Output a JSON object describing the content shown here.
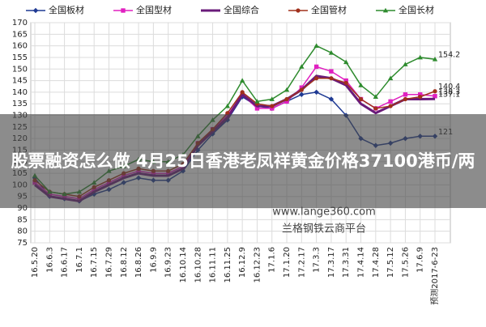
{
  "chart_data": {
    "type": "line",
    "categories": [
      "16.5.20",
      "16.6.3",
      "16.6.17",
      "16.7.1",
      "16.7.15",
      "16.7.29",
      "16.8.12",
      "16.8.26",
      "16.9.9",
      "16.9.23",
      "16.10.14",
      "16.10.28",
      "16.11.11",
      "16.11.25",
      "16.12.9",
      "16.12.23",
      "17.1.6",
      "17.1.20",
      "17.2.17",
      "17.3.3",
      "17.3.17",
      "17.3.31",
      "17.4.14",
      "17.4.28",
      "17.5.12",
      "17.5.26",
      "17.6.9",
      "预测2017-6-23"
    ],
    "series": [
      {
        "name": "全国板材",
        "color": "#1f3a93",
        "marker": "diamond",
        "values": [
          103,
          95,
          94,
          93,
          96,
          98,
          101,
          103,
          102,
          102,
          106,
          115,
          122,
          128,
          138,
          134,
          133,
          136,
          139,
          140,
          137,
          130,
          120,
          117,
          118,
          120,
          121,
          121
        ]
      },
      {
        "name": "全国型材",
        "color": "#e020c0",
        "marker": "square",
        "values": [
          101,
          96,
          95,
          94,
          98,
          101,
          104,
          106,
          105,
          105,
          108,
          118,
          124,
          130,
          139,
          133,
          133,
          136,
          142,
          151,
          149,
          145,
          137,
          133,
          136,
          139,
          139,
          138.3
        ]
      },
      {
        "name": "全国综合",
        "color": "#6a1b7a",
        "marker": "none",
        "values": [
          100,
          95,
          94,
          93,
          97,
          100,
          103,
          105,
          104,
          104,
          107,
          117,
          123,
          129,
          139,
          134,
          134,
          137,
          141,
          147,
          146,
          143,
          135,
          131,
          134,
          137,
          137,
          137.1
        ]
      },
      {
        "name": "全国管材",
        "color": "#a0301c",
        "marker": "circle",
        "values": [
          102,
          97,
          96,
          95,
          99,
          102,
          105,
          107,
          106,
          106,
          109,
          118,
          124,
          131,
          140,
          135,
          134,
          137,
          141,
          146,
          146,
          144,
          137,
          133,
          134,
          137,
          138,
          140.4
        ]
      },
      {
        "name": "全国长材",
        "color": "#2e8b2e",
        "marker": "triangle",
        "values": [
          104,
          97,
          96,
          97,
          101,
          106,
          108,
          111,
          110,
          110,
          113,
          121,
          128,
          134,
          145,
          136,
          137,
          141,
          151,
          160,
          157,
          153,
          143,
          138,
          146,
          152,
          155,
          154.2
        ]
      }
    ],
    "ylim": [
      75,
      170
    ],
    "yticks": [
      75,
      80,
      85,
      90,
      95,
      100,
      105,
      110,
      115,
      120,
      125,
      130,
      135,
      140,
      145,
      150,
      155,
      160,
      165,
      170
    ],
    "grid": true,
    "legend": "top"
  },
  "overlay": {
    "watermark": [
      "www.lange360.com",
      "兰格钢铁云商平台"
    ],
    "banner": "股票融资怎么做 4月25日香港老凤祥黄金价格37100港币/两"
  }
}
